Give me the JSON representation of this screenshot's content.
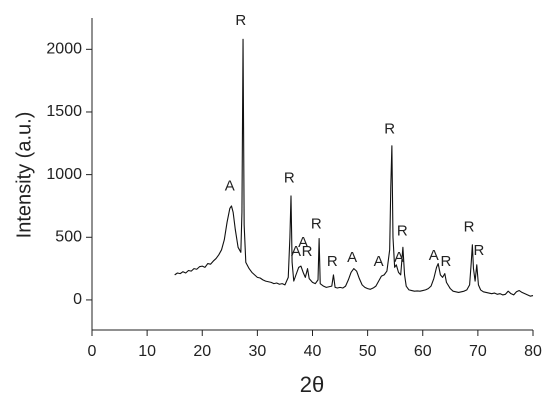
{
  "chart_data": {
    "type": "line",
    "xlabel": "2θ",
    "ylabel": "Intensity (a.u.)",
    "xlim": [
      0,
      80
    ],
    "xticks": [
      0,
      10,
      20,
      30,
      40,
      50,
      60,
      70,
      80
    ],
    "ylim": [
      -240,
      2250
    ],
    "yticks": [
      0,
      500,
      1000,
      1500,
      2000
    ],
    "color": "#111111",
    "x": [
      15,
      15.5,
      16,
      16.5,
      17,
      17.5,
      18,
      18.5,
      19,
      19.5,
      20,
      20.5,
      21,
      21.5,
      22,
      22.5,
      23,
      23.5,
      24,
      24.5,
      25,
      25.3,
      25.6,
      26,
      26.5,
      27,
      27.2,
      27.4,
      27.6,
      27.9,
      28.5,
      29,
      29.5,
      30,
      30.5,
      31,
      31.5,
      32,
      32.5,
      33,
      33.5,
      34,
      34.5,
      35,
      35.6,
      35.9,
      36.1,
      36.3,
      36.6,
      37,
      37.5,
      37.9,
      38.3,
      38.7,
      39.1,
      39.4,
      40,
      40.5,
      41,
      41.2,
      41.4,
      42,
      42.5,
      43,
      43.5,
      43.8,
      44.1,
      44.5,
      45,
      45.5,
      46,
      46.5,
      47,
      47.5,
      48,
      48.5,
      49,
      49.5,
      50,
      50.5,
      51,
      51.5,
      52,
      52.5,
      53,
      53.5,
      54,
      54.2,
      54.4,
      54.6,
      54.9,
      55.2,
      55.6,
      56,
      56.4,
      56.7,
      57,
      57.5,
      58,
      58.5,
      59,
      59.5,
      60,
      60.5,
      61,
      61.5,
      62,
      62.5,
      62.8,
      63.2,
      63.6,
      64,
      64.3,
      65,
      65.5,
      66,
      66.5,
      67,
      67.5,
      68,
      68.5,
      68.8,
      69,
      69.2,
      69.5,
      69.8,
      70.1,
      70.5,
      71,
      71.5,
      72,
      72.5,
      73,
      73.5,
      74,
      74.5,
      75,
      75.5,
      76,
      76.5,
      77,
      77.5,
      78,
      78.5,
      79,
      79.5,
      80
    ],
    "values": [
      200,
      215,
      210,
      225,
      215,
      235,
      230,
      250,
      245,
      265,
      270,
      260,
      290,
      285,
      310,
      330,
      360,
      400,
      480,
      620,
      730,
      750,
      700,
      560,
      420,
      380,
      700,
      2080,
      600,
      300,
      250,
      220,
      200,
      180,
      175,
      160,
      150,
      145,
      140,
      130,
      135,
      125,
      130,
      120,
      180,
      500,
      830,
      300,
      150,
      200,
      260,
      270,
      220,
      180,
      250,
      170,
      140,
      130,
      160,
      490,
      130,
      110,
      100,
      105,
      110,
      200,
      100,
      95,
      100,
      95,
      110,
      160,
      220,
      250,
      230,
      170,
      120,
      100,
      90,
      85,
      95,
      110,
      150,
      190,
      200,
      230,
      400,
      900,
      1230,
      500,
      260,
      280,
      220,
      200,
      420,
      200,
      110,
      80,
      75,
      70,
      72,
      70,
      75,
      80,
      90,
      110,
      170,
      260,
      290,
      200,
      180,
      210,
      140,
      90,
      70,
      65,
      60,
      65,
      70,
      80,
      120,
      300,
      440,
      250,
      150,
      280,
      120,
      80,
      65,
      60,
      55,
      50,
      55,
      45,
      50,
      40,
      45,
      70,
      50,
      40,
      65,
      75,
      60,
      50,
      40,
      30,
      35
    ],
    "annotations": [
      {
        "text": "A",
        "x": 25,
        "y": 904
      },
      {
        "text": "R",
        "x": 27,
        "y": 2224
      },
      {
        "text": "R",
        "x": 35.8,
        "y": 968
      },
      {
        "text": "A",
        "x": 37,
        "y": 384
      },
      {
        "text": "A",
        "x": 38.3,
        "y": 456
      },
      {
        "text": "R",
        "x": 39,
        "y": 384
      },
      {
        "text": "R",
        "x": 40.7,
        "y": 600
      },
      {
        "text": "R",
        "x": 43.6,
        "y": 304
      },
      {
        "text": "A",
        "x": 47.2,
        "y": 336
      },
      {
        "text": "A",
        "x": 52,
        "y": 304
      },
      {
        "text": "R",
        "x": 54,
        "y": 1360
      },
      {
        "text": "A",
        "x": 55.7,
        "y": 336
      },
      {
        "text": "R",
        "x": 56.3,
        "y": 544
      },
      {
        "text": "A",
        "x": 62,
        "y": 352
      },
      {
        "text": "R",
        "x": 64.2,
        "y": 304
      },
      {
        "text": "R",
        "x": 68.4,
        "y": 576
      },
      {
        "text": "R",
        "x": 70.2,
        "y": 392
      }
    ]
  }
}
